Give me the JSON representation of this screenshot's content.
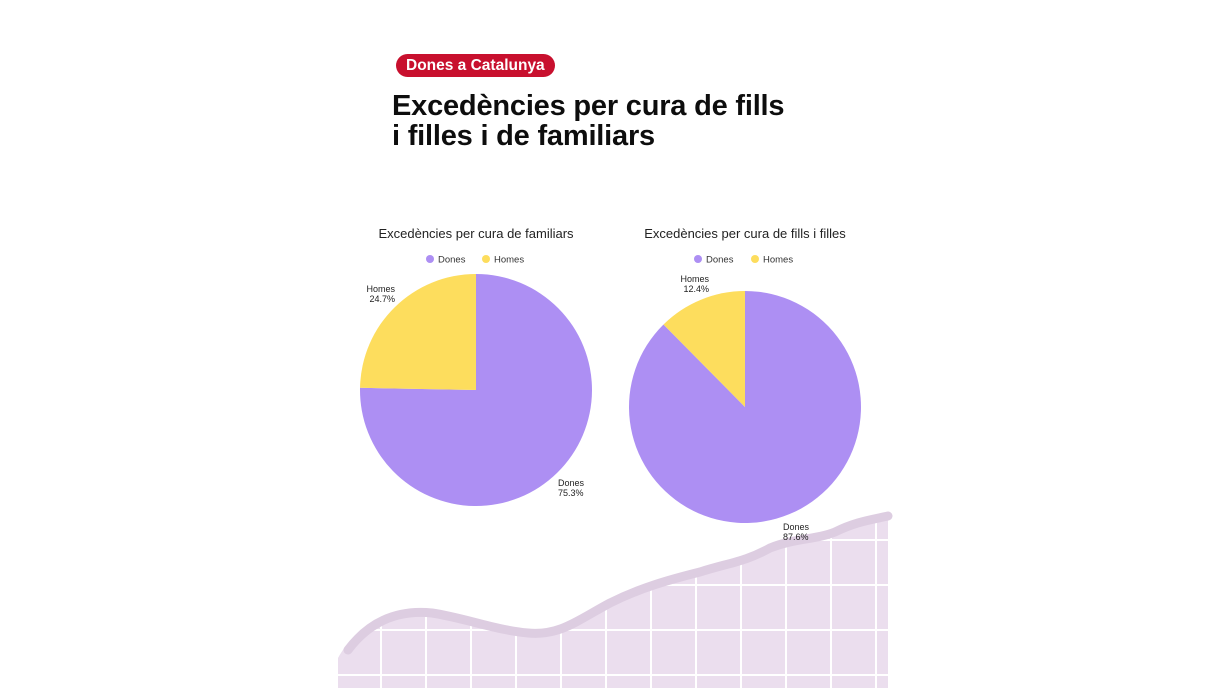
{
  "header": {
    "badge": "Dones a Catalunya",
    "title_line1": "Excedències per cura de fills",
    "title_line2": "i filles i de familiars"
  },
  "colors": {
    "dones": "#ad8ff3",
    "homes": "#fddd5d",
    "badge": "#c8102e",
    "decor_fill": "#ebdeee",
    "decor_band": "#ddcde1"
  },
  "chart_data": [
    {
      "type": "pie",
      "title": "Excedències per cura de familiars",
      "legend_position": "top",
      "series": [
        {
          "name": "Dones",
          "value": 75.3,
          "label": "75.3%"
        },
        {
          "name": "Homes",
          "value": 24.7,
          "label": "24.7%"
        }
      ]
    },
    {
      "type": "pie",
      "title": "Excedències per cura de fills i filles",
      "legend_position": "top",
      "series": [
        {
          "name": "Dones",
          "value": 87.6,
          "label": "87.6%"
        },
        {
          "name": "Homes",
          "value": 12.4,
          "label": "12.4%"
        }
      ]
    }
  ]
}
